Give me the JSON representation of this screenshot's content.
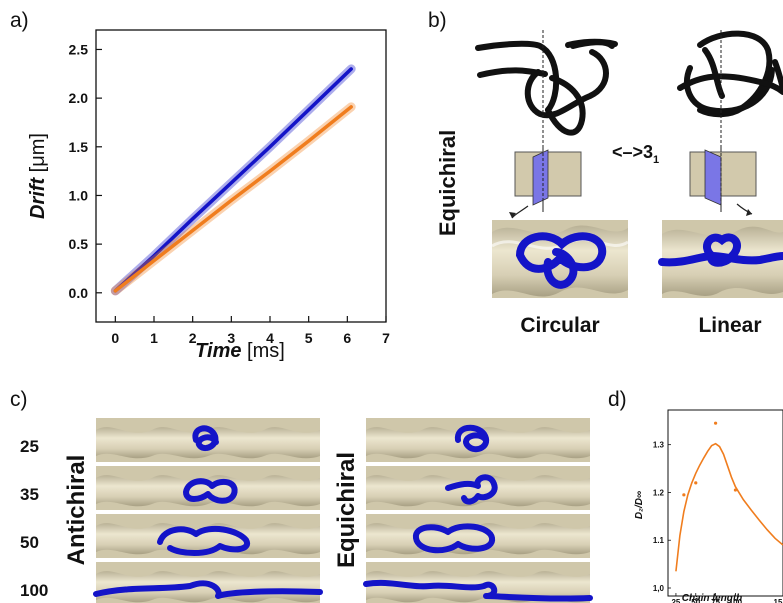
{
  "panels": {
    "a": "a)",
    "b": "b)",
    "c": "c)",
    "d": "d)"
  },
  "panel_a": {
    "xlabel_italic": "Time",
    "xlabel_unit": " [ms]",
    "ylabel_italic": "Drift",
    "ylabel_unit": " [μm]"
  },
  "panel_b": {
    "row_label": "Equichiral",
    "transition_label": "<–>3",
    "transition_sub": "1",
    "left_caption": "Circular",
    "right_caption": "Linear"
  },
  "panel_c": {
    "row_values": [
      "25",
      "35",
      "50",
      "100"
    ],
    "left_group": "Antichiral",
    "right_group": "Equichiral"
  },
  "panel_d": {
    "ylabel": "D₂/D∞",
    "xlabel": "Chain length"
  },
  "colors": {
    "blue": "#1414c8",
    "orange": "#f07d1e",
    "beige": "#d6cfb6",
    "beige_dark": "#a39b80",
    "slab": "#d2c9ac",
    "plane": "#7a76e6"
  },
  "chart_data": [
    {
      "type": "line",
      "panel": "a",
      "xlim": [
        -0.5,
        7
      ],
      "ylim": [
        -0.3,
        2.7
      ],
      "x_ticks": [
        0,
        1,
        2,
        3,
        4,
        5,
        6,
        7
      ],
      "y_ticks": [
        0.0,
        0.5,
        1.0,
        1.5,
        2.0,
        2.5
      ],
      "series": [
        {
          "color": "blue",
          "x": [
            0.0,
            1.0,
            2.0,
            3.0,
            4.0,
            5.0,
            6.1
          ],
          "y": [
            0.02,
            0.38,
            0.76,
            1.13,
            1.5,
            1.88,
            2.3
          ]
        },
        {
          "color": "orange",
          "x": [
            0.0,
            1.0,
            2.0,
            3.0,
            4.0,
            5.0,
            6.1
          ],
          "y": [
            0.02,
            0.33,
            0.64,
            0.95,
            1.25,
            1.56,
            1.91
          ]
        }
      ]
    },
    {
      "type": "scatter",
      "panel": "d",
      "xlim": [
        15,
        160
      ],
      "ylim": [
        1.0,
        1.36
      ],
      "x_ticks": [
        25,
        50,
        75,
        100
      ],
      "x_tick_last": "15",
      "y_ticks": [
        "1,0",
        "1.1",
        "1.2",
        "1.3"
      ],
      "y_tick_values": [
        1.0,
        1.1,
        1.2,
        1.3
      ],
      "points": [
        {
          "x": 35,
          "y": 1.195
        },
        {
          "x": 50,
          "y": 1.22
        },
        {
          "x": 75,
          "y": 1.345
        },
        {
          "x": 100,
          "y": 1.205
        }
      ],
      "fit": {
        "x": [
          25,
          30,
          35,
          40,
          45,
          50,
          55,
          60,
          65,
          70,
          75,
          80,
          85,
          90,
          95,
          100,
          110,
          120,
          130,
          140,
          150,
          160
        ],
        "y": [
          1.035,
          1.11,
          1.16,
          1.195,
          1.22,
          1.24,
          1.257,
          1.272,
          1.286,
          1.298,
          1.302,
          1.296,
          1.28,
          1.256,
          1.232,
          1.212,
          1.185,
          1.163,
          1.142,
          1.122,
          1.104,
          1.09
        ]
      }
    }
  ]
}
